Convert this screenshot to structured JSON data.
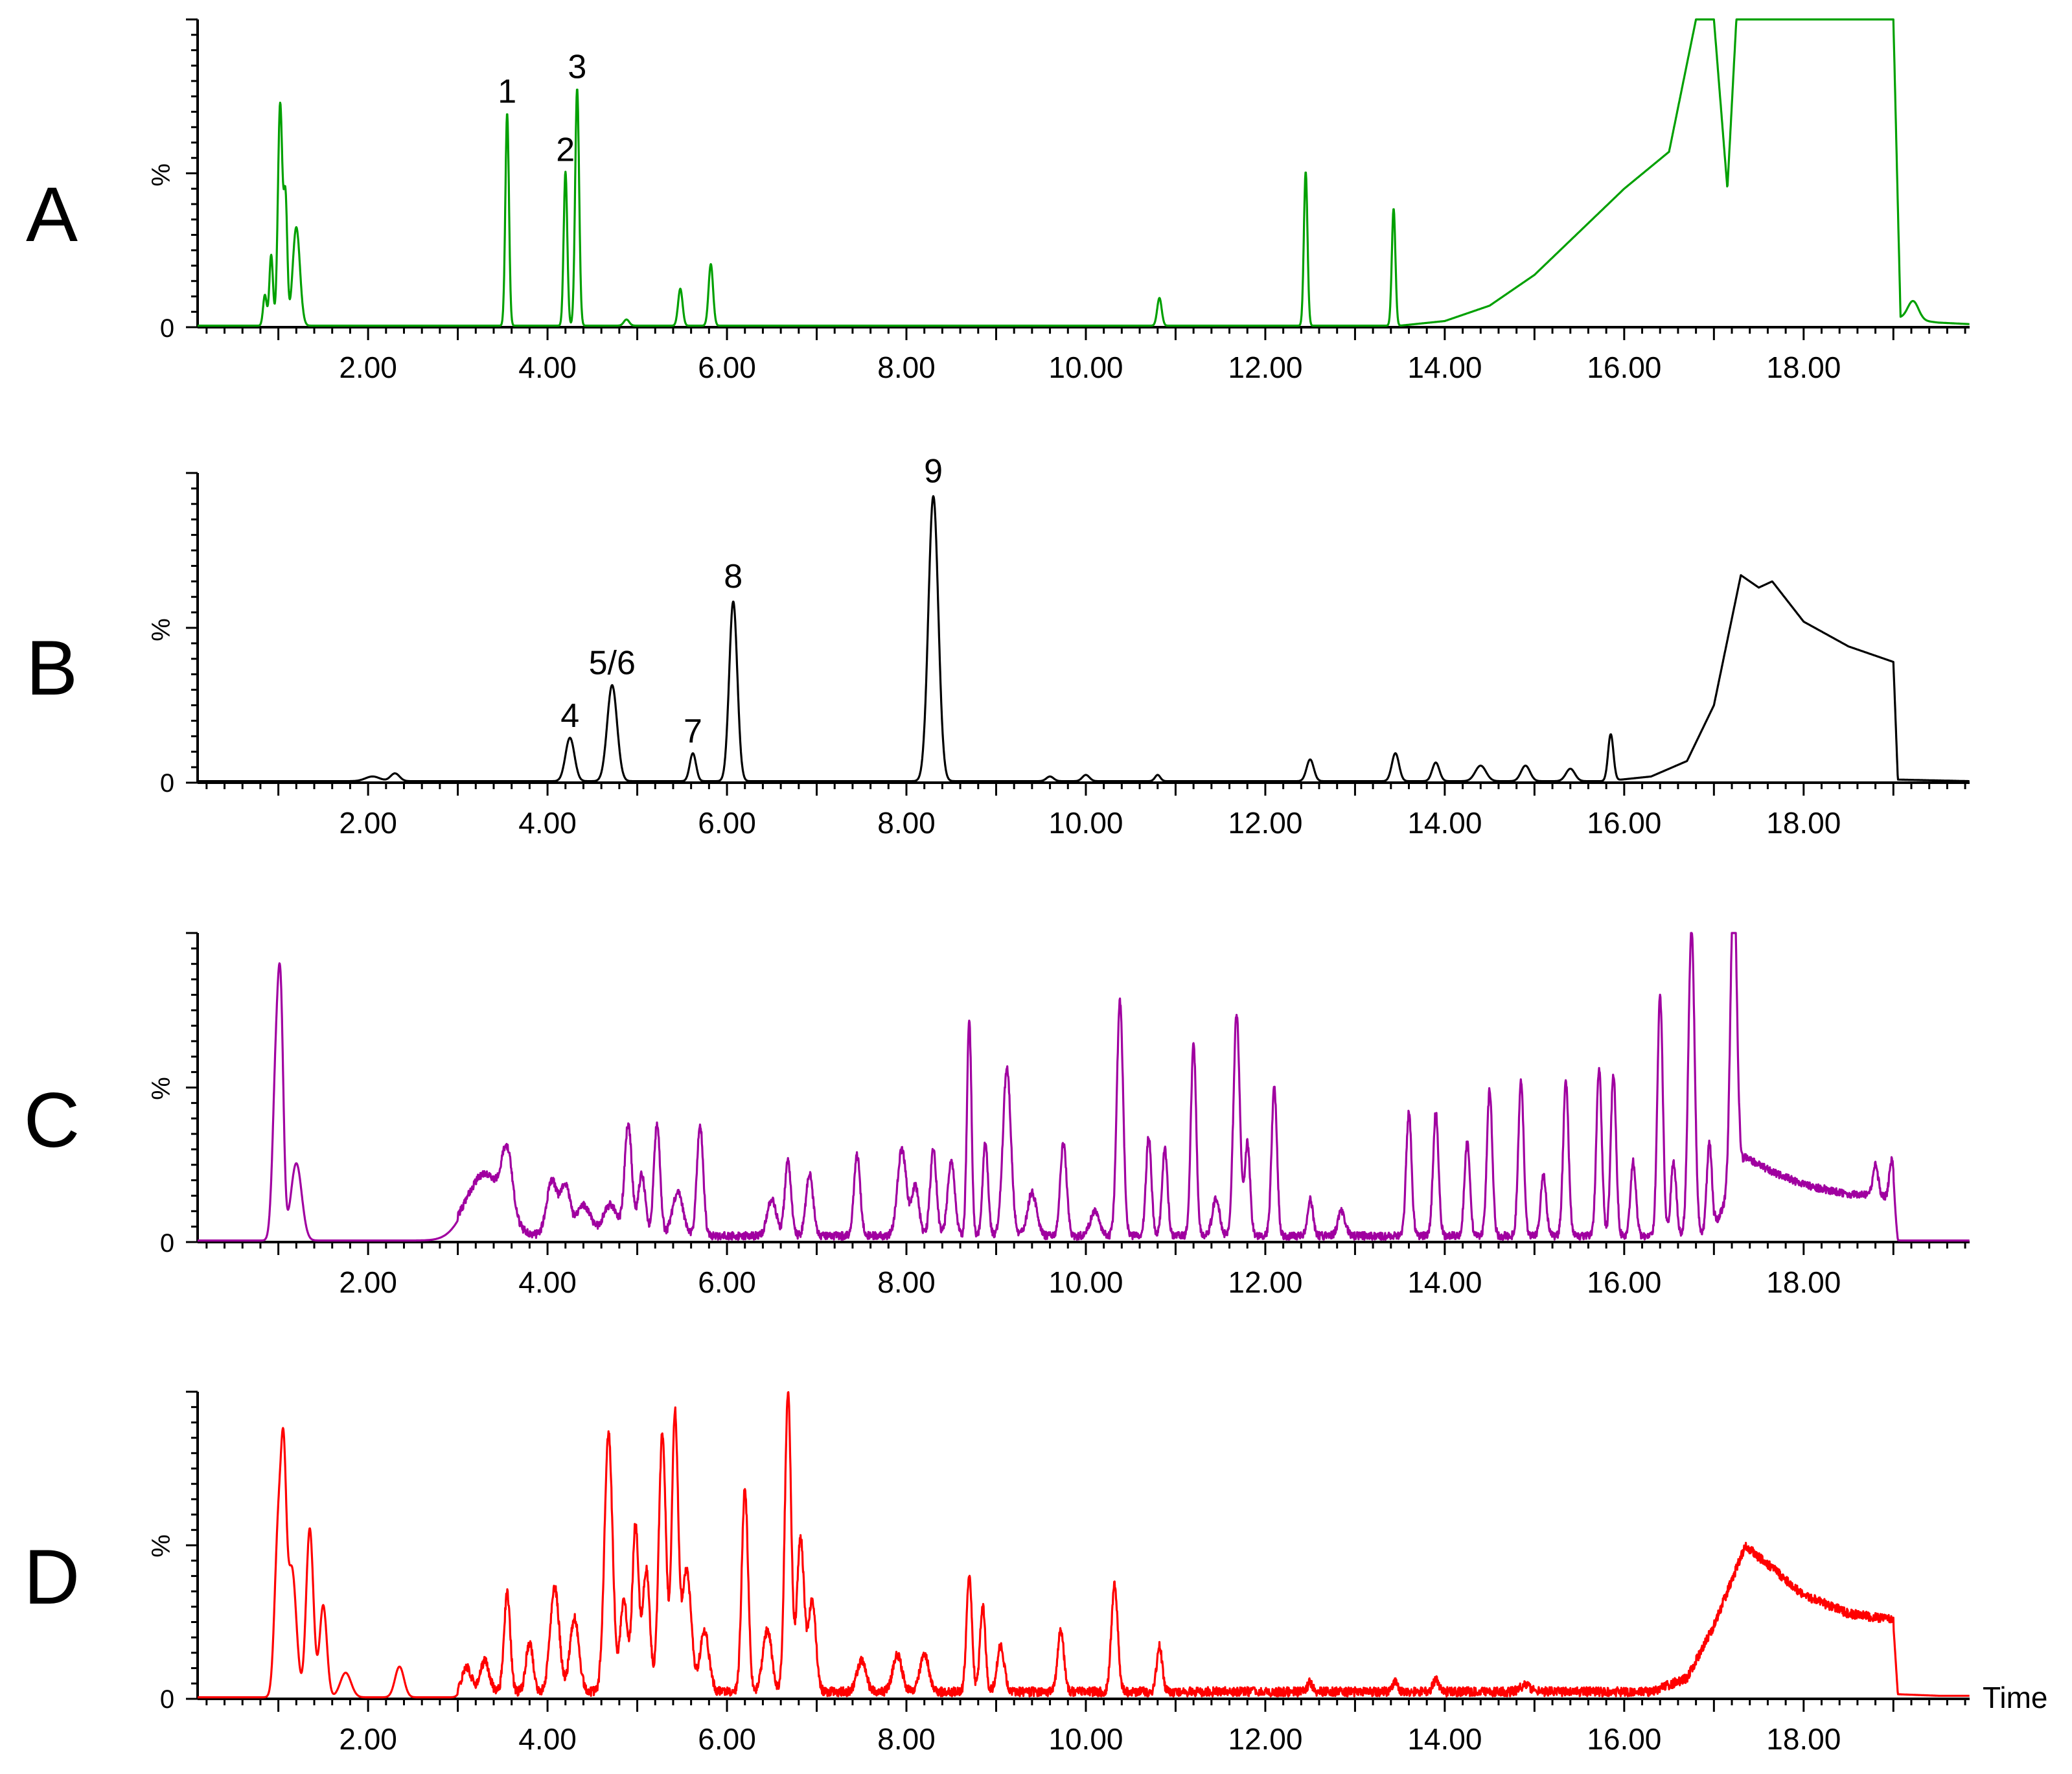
{
  "chart_data": [
    {
      "type": "line",
      "panel_label": "A",
      "color": "#00a000",
      "y_ticks": [
        "0",
        "%"
      ],
      "x_tick_labels": [
        "2.00",
        "4.00",
        "6.00",
        "8.00",
        "10.00",
        "12.00",
        "14.00",
        "16.00",
        "18.00"
      ],
      "xlim": [
        0.1,
        19.85
      ],
      "ylim": [
        0,
        100
      ],
      "baseline": 0.5,
      "peaks": [
        {
          "x": 0.85,
          "h": 10,
          "w": 0.02
        },
        {
          "x": 0.92,
          "h": 23,
          "w": 0.02
        },
        {
          "x": 1.02,
          "h": 72,
          "w": 0.025
        },
        {
          "x": 1.08,
          "h": 40,
          "w": 0.02
        },
        {
          "x": 1.2,
          "h": 32,
          "w": 0.04
        },
        {
          "x": 3.55,
          "h": 69,
          "w": 0.02
        },
        {
          "x": 4.2,
          "h": 50,
          "w": 0.02
        },
        {
          "x": 4.33,
          "h": 77,
          "w": 0.022
        },
        {
          "x": 4.88,
          "h": 2,
          "w": 0.03
        },
        {
          "x": 5.48,
          "h": 12,
          "w": 0.025
        },
        {
          "x": 5.82,
          "h": 20,
          "w": 0.025
        },
        {
          "x": 10.82,
          "h": 9,
          "w": 0.025
        },
        {
          "x": 12.45,
          "h": 50,
          "w": 0.02
        },
        {
          "x": 13.43,
          "h": 38,
          "w": 0.02
        },
        {
          "x": 19.22,
          "h": 6,
          "w": 0.06
        }
      ],
      "ramp": [
        [
          13.5,
          0.5
        ],
        [
          14.0,
          2
        ],
        [
          14.5,
          7
        ],
        [
          15.0,
          17
        ],
        [
          15.5,
          31
        ],
        [
          16.0,
          45
        ],
        [
          16.5,
          57
        ],
        [
          16.8,
          100
        ],
        [
          17.0,
          100
        ],
        [
          17.15,
          45
        ],
        [
          17.25,
          100
        ],
        [
          19.0,
          100
        ],
        [
          19.08,
          3
        ],
        [
          19.5,
          1.5
        ],
        [
          19.85,
          1
        ]
      ],
      "annotations": [
        {
          "text": "1",
          "x": 3.55,
          "y": 73
        },
        {
          "text": "2",
          "x": 4.2,
          "y": 54
        },
        {
          "text": "3",
          "x": 4.33,
          "y": 81
        }
      ]
    },
    {
      "type": "line",
      "panel_label": "B",
      "color": "#000000",
      "y_ticks": [
        "0",
        "%"
      ],
      "x_tick_labels": [
        "2.00",
        "4.00",
        "6.00",
        "8.00",
        "10.00",
        "12.00",
        "14.00",
        "16.00",
        "18.00"
      ],
      "xlim": [
        0.1,
        19.85
      ],
      "ylim": [
        0,
        100
      ],
      "baseline": 0.5,
      "peaks": [
        {
          "x": 2.05,
          "h": 1.5,
          "w": 0.08
        },
        {
          "x": 2.3,
          "h": 2.5,
          "w": 0.05
        },
        {
          "x": 4.25,
          "h": 14,
          "w": 0.05
        },
        {
          "x": 4.72,
          "h": 31,
          "w": 0.055
        },
        {
          "x": 5.62,
          "h": 9,
          "w": 0.035
        },
        {
          "x": 6.07,
          "h": 58,
          "w": 0.045
        },
        {
          "x": 8.3,
          "h": 92,
          "w": 0.055
        },
        {
          "x": 9.6,
          "h": 1.5,
          "w": 0.04
        },
        {
          "x": 10.0,
          "h": 2,
          "w": 0.04
        },
        {
          "x": 10.8,
          "h": 2,
          "w": 0.03
        },
        {
          "x": 12.5,
          "h": 7,
          "w": 0.04
        },
        {
          "x": 13.45,
          "h": 9,
          "w": 0.04
        },
        {
          "x": 13.9,
          "h": 6,
          "w": 0.04
        },
        {
          "x": 14.4,
          "h": 5,
          "w": 0.06
        },
        {
          "x": 14.9,
          "h": 5,
          "w": 0.05
        },
        {
          "x": 15.4,
          "h": 4,
          "w": 0.05
        },
        {
          "x": 15.85,
          "h": 15,
          "w": 0.03
        }
      ],
      "ramp": [
        [
          15.8,
          0.5
        ],
        [
          16.3,
          2
        ],
        [
          16.7,
          7
        ],
        [
          17.0,
          25
        ],
        [
          17.3,
          67
        ],
        [
          17.5,
          63
        ],
        [
          17.65,
          65
        ],
        [
          18.0,
          52
        ],
        [
          18.5,
          44
        ],
        [
          19.0,
          39
        ],
        [
          19.05,
          1
        ],
        [
          19.85,
          0.5
        ]
      ],
      "annotations": [
        {
          "text": "4",
          "x": 4.25,
          "y": 18
        },
        {
          "text": "5/6",
          "x": 4.72,
          "y": 35
        },
        {
          "text": "7",
          "x": 5.62,
          "y": 13
        },
        {
          "text": "8",
          "x": 6.07,
          "y": 63
        },
        {
          "text": "9",
          "x": 8.3,
          "y": 97
        }
      ]
    },
    {
      "type": "line",
      "panel_label": "C",
      "color": "#a000a0",
      "y_ticks": [
        "0",
        "%"
      ],
      "x_tick_labels": [
        "2.00",
        "4.00",
        "6.00",
        "8.00",
        "10.00",
        "12.00",
        "14.00",
        "16.00",
        "18.00"
      ],
      "xlim": [
        0.1,
        19.85
      ],
      "ylim": [
        0,
        100
      ],
      "baseline": 0.5,
      "peaks": [
        {
          "x": 0.98,
          "h": 60,
          "w": 0.04
        },
        {
          "x": 1.03,
          "h": 55,
          "w": 0.03
        },
        {
          "x": 1.2,
          "h": 25,
          "w": 0.06
        },
        {
          "x": 3.3,
          "h": 20,
          "w": 0.2
        },
        {
          "x": 3.55,
          "h": 20,
          "w": 0.06
        },
        {
          "x": 4.05,
          "h": 18,
          "w": 0.06
        },
        {
          "x": 4.2,
          "h": 16,
          "w": 0.05
        },
        {
          "x": 4.4,
          "h": 10,
          "w": 0.08
        },
        {
          "x": 4.7,
          "h": 10,
          "w": 0.08
        },
        {
          "x": 4.9,
          "h": 36,
          "w": 0.04
        },
        {
          "x": 5.05,
          "h": 20,
          "w": 0.04
        },
        {
          "x": 5.22,
          "h": 36,
          "w": 0.035
        },
        {
          "x": 5.45,
          "h": 14,
          "w": 0.06
        },
        {
          "x": 5.7,
          "h": 36,
          "w": 0.035
        },
        {
          "x": 6.5,
          "h": 12,
          "w": 0.05
        },
        {
          "x": 6.68,
          "h": 24,
          "w": 0.035
        },
        {
          "x": 6.92,
          "h": 20,
          "w": 0.04
        },
        {
          "x": 7.45,
          "h": 26,
          "w": 0.035
        },
        {
          "x": 7.95,
          "h": 28,
          "w": 0.05
        },
        {
          "x": 8.1,
          "h": 16,
          "w": 0.04
        },
        {
          "x": 8.3,
          "h": 28,
          "w": 0.035
        },
        {
          "x": 8.5,
          "h": 24,
          "w": 0.04
        },
        {
          "x": 8.7,
          "h": 70,
          "w": 0.025
        },
        {
          "x": 8.88,
          "h": 30,
          "w": 0.03
        },
        {
          "x": 9.12,
          "h": 54,
          "w": 0.045
        },
        {
          "x": 9.4,
          "h": 14,
          "w": 0.05
        },
        {
          "x": 9.75,
          "h": 30,
          "w": 0.035
        },
        {
          "x": 10.1,
          "h": 8,
          "w": 0.05
        },
        {
          "x": 10.38,
          "h": 76,
          "w": 0.035
        },
        {
          "x": 10.7,
          "h": 32,
          "w": 0.03
        },
        {
          "x": 10.88,
          "h": 28,
          "w": 0.03
        },
        {
          "x": 11.2,
          "h": 62,
          "w": 0.03
        },
        {
          "x": 11.45,
          "h": 12,
          "w": 0.04
        },
        {
          "x": 11.68,
          "h": 72,
          "w": 0.035
        },
        {
          "x": 11.8,
          "h": 30,
          "w": 0.03
        },
        {
          "x": 12.1,
          "h": 48,
          "w": 0.03
        },
        {
          "x": 12.5,
          "h": 12,
          "w": 0.03
        },
        {
          "x": 12.85,
          "h": 8,
          "w": 0.04
        },
        {
          "x": 13.6,
          "h": 40,
          "w": 0.03
        },
        {
          "x": 13.9,
          "h": 40,
          "w": 0.03
        },
        {
          "x": 14.25,
          "h": 30,
          "w": 0.03
        },
        {
          "x": 14.5,
          "h": 47,
          "w": 0.03
        },
        {
          "x": 14.85,
          "h": 50,
          "w": 0.03
        },
        {
          "x": 15.1,
          "h": 20,
          "w": 0.03
        },
        {
          "x": 15.35,
          "h": 50,
          "w": 0.03
        },
        {
          "x": 15.72,
          "h": 54,
          "w": 0.03
        },
        {
          "x": 15.88,
          "h": 52,
          "w": 0.03
        },
        {
          "x": 16.1,
          "h": 24,
          "w": 0.03
        },
        {
          "x": 16.4,
          "h": 78,
          "w": 0.03
        },
        {
          "x": 16.55,
          "h": 24,
          "w": 0.03
        },
        {
          "x": 16.75,
          "h": 100,
          "w": 0.035
        },
        {
          "x": 16.95,
          "h": 30,
          "w": 0.03
        },
        {
          "x": 17.22,
          "h": 100,
          "w": 0.035
        },
        {
          "x": 18.8,
          "h": 10,
          "w": 0.03
        },
        {
          "x": 18.98,
          "h": 12,
          "w": 0.025
        }
      ],
      "ramp": [
        [
          17.0,
          3
        ],
        [
          17.35,
          26
        ],
        [
          17.6,
          22
        ],
        [
          18.0,
          17
        ],
        [
          18.5,
          14
        ],
        [
          19.0,
          13
        ],
        [
          19.05,
          0.5
        ],
        [
          19.85,
          0.5
        ]
      ],
      "noise": 2.5,
      "annotations": []
    },
    {
      "type": "line",
      "panel_label": "D",
      "color": "#ff0000",
      "y_ticks": [
        "0",
        "%"
      ],
      "x_tick_labels": [
        "2.00",
        "4.00",
        "6.00",
        "8.00",
        "10.00",
        "12.00",
        "14.00",
        "16.00",
        "18.00"
      ],
      "xlim": [
        0.1,
        19.85
      ],
      "ylim": [
        0,
        100
      ],
      "baseline": 0.5,
      "x_axis_title": "Time",
      "peaks": [
        {
          "x": 1.0,
          "h": 55,
          "w": 0.04
        },
        {
          "x": 1.06,
          "h": 60,
          "w": 0.03
        },
        {
          "x": 1.15,
          "h": 42,
          "w": 0.05
        },
        {
          "x": 1.35,
          "h": 55,
          "w": 0.04
        },
        {
          "x": 1.5,
          "h": 30,
          "w": 0.04
        },
        {
          "x": 1.75,
          "h": 8,
          "w": 0.06
        },
        {
          "x": 2.35,
          "h": 10,
          "w": 0.05
        },
        {
          "x": 3.1,
          "h": 8,
          "w": 0.05
        },
        {
          "x": 3.3,
          "h": 10,
          "w": 0.05
        },
        {
          "x": 3.55,
          "h": 32,
          "w": 0.035
        },
        {
          "x": 3.8,
          "h": 16,
          "w": 0.04
        },
        {
          "x": 4.08,
          "h": 34,
          "w": 0.05
        },
        {
          "x": 4.3,
          "h": 24,
          "w": 0.05
        },
        {
          "x": 4.68,
          "h": 84,
          "w": 0.045
        },
        {
          "x": 4.85,
          "h": 30,
          "w": 0.04
        },
        {
          "x": 4.98,
          "h": 54,
          "w": 0.035
        },
        {
          "x": 5.1,
          "h": 40,
          "w": 0.04
        },
        {
          "x": 5.28,
          "h": 84,
          "w": 0.04
        },
        {
          "x": 5.42,
          "h": 90,
          "w": 0.035
        },
        {
          "x": 5.55,
          "h": 40,
          "w": 0.05
        },
        {
          "x": 5.75,
          "h": 20,
          "w": 0.05
        },
        {
          "x": 6.2,
          "h": 66,
          "w": 0.035
        },
        {
          "x": 6.45,
          "h": 20,
          "w": 0.05
        },
        {
          "x": 6.68,
          "h": 97,
          "w": 0.035
        },
        {
          "x": 6.82,
          "h": 50,
          "w": 0.04
        },
        {
          "x": 6.95,
          "h": 30,
          "w": 0.04
        },
        {
          "x": 7.5,
          "h": 10,
          "w": 0.05
        },
        {
          "x": 7.9,
          "h": 12,
          "w": 0.05
        },
        {
          "x": 8.2,
          "h": 12,
          "w": 0.05
        },
        {
          "x": 8.7,
          "h": 38,
          "w": 0.03
        },
        {
          "x": 8.85,
          "h": 28,
          "w": 0.03
        },
        {
          "x": 9.05,
          "h": 15,
          "w": 0.04
        },
        {
          "x": 9.72,
          "h": 20,
          "w": 0.035
        },
        {
          "x": 10.32,
          "h": 35,
          "w": 0.035
        },
        {
          "x": 10.82,
          "h": 15,
          "w": 0.03
        },
        {
          "x": 12.5,
          "h": 3,
          "w": 0.03
        },
        {
          "x": 13.45,
          "h": 3,
          "w": 0.03
        },
        {
          "x": 13.9,
          "h": 4,
          "w": 0.03
        },
        {
          "x": 14.9,
          "h": 2,
          "w": 0.06
        }
      ],
      "ramp": [
        [
          16.3,
          0.5
        ],
        [
          16.7,
          5
        ],
        [
          17.0,
          22
        ],
        [
          17.35,
          48
        ],
        [
          17.6,
          42
        ],
        [
          18.0,
          32
        ],
        [
          18.5,
          26
        ],
        [
          19.0,
          24
        ],
        [
          19.05,
          1.5
        ],
        [
          19.5,
          1
        ],
        [
          19.85,
          1
        ]
      ],
      "noise": 3,
      "annotations": []
    }
  ]
}
